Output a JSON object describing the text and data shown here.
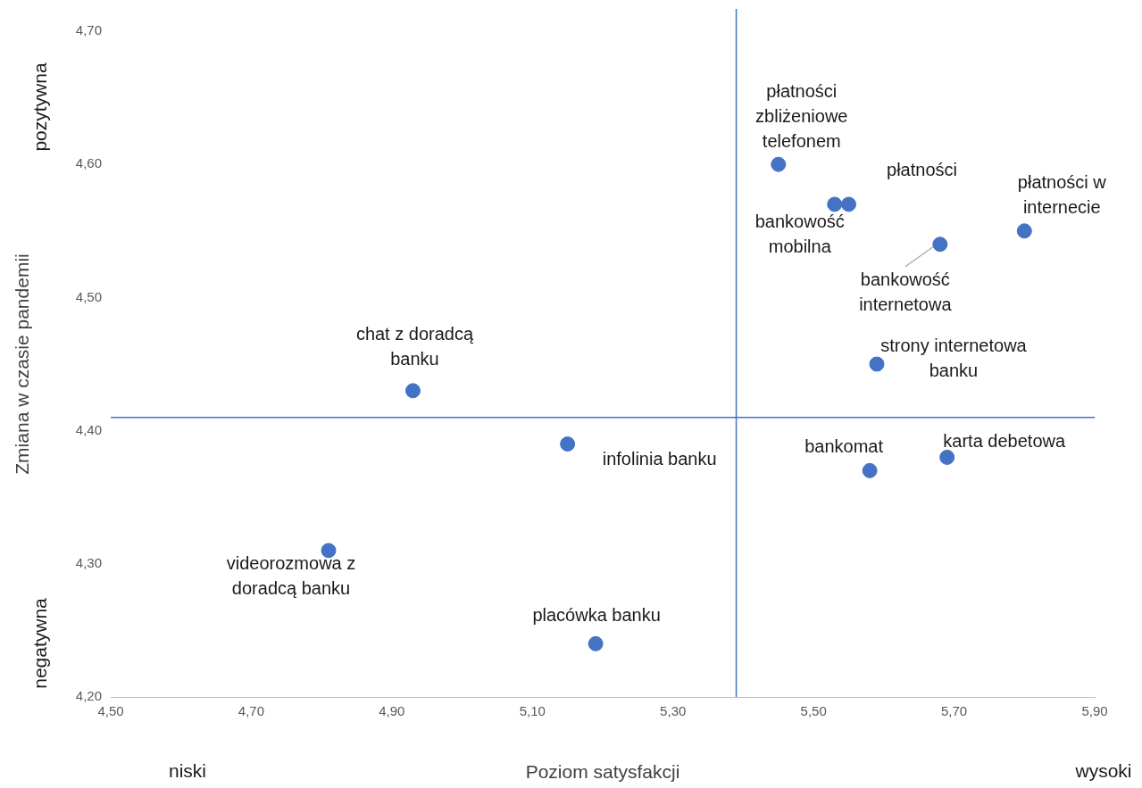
{
  "chart_data": {
    "type": "scatter",
    "xlabel": "Poziom satysfakcji",
    "ylabel": "Zmiana w czasie pandemii",
    "x": [
      5.45,
      5.55,
      5.53,
      5.8,
      5.68,
      5.59,
      4.93,
      5.15,
      5.58,
      5.69,
      4.81,
      5.19
    ],
    "values": [
      4.6,
      4.57,
      4.57,
      4.55,
      4.54,
      4.45,
      4.43,
      4.39,
      4.37,
      4.38,
      4.31,
      4.24
    ],
    "color": "#4472c4",
    "marker": "circle",
    "legend": false,
    "grid": false,
    "xlim": [
      4.5,
      5.9
    ],
    "ylim": [
      4.2,
      4.7
    ],
    "xticks": [
      {
        "value": 4.5,
        "label": "4,50"
      },
      {
        "value": 4.7,
        "label": "4,70"
      },
      {
        "value": 4.9,
        "label": "4,90"
      },
      {
        "value": 5.1,
        "label": "5,10"
      },
      {
        "value": 5.3,
        "label": "5,30"
      },
      {
        "value": 5.5,
        "label": "5,50"
      },
      {
        "value": 5.7,
        "label": "5,70"
      },
      {
        "value": 5.9,
        "label": "5,90"
      }
    ],
    "yticks": [
      {
        "value": 4.2,
        "label": "4,20"
      },
      {
        "value": 4.3,
        "label": "4,30"
      },
      {
        "value": 4.4,
        "label": "4,40"
      },
      {
        "value": 4.5,
        "label": "4,50"
      },
      {
        "value": 4.6,
        "label": "4,60"
      },
      {
        "value": 4.7,
        "label": "4,70"
      }
    ],
    "ref_lines": [
      {
        "axis": "x",
        "value": 5.39,
        "color": "#4472c4"
      },
      {
        "axis": "y",
        "value": 4.41,
        "color": "#4472c4"
      }
    ],
    "annotations": [
      "pozytywna",
      "negatywna",
      "niski",
      "wysoki",
      {
        "text": "płatności zbliżeniowe telefonem",
        "x": 5.45,
        "y": 4.6
      },
      {
        "text": "płatności",
        "x": 5.55,
        "y": 4.57
      },
      {
        "text": "bankowość mobilna",
        "x": 5.53,
        "y": 4.57
      },
      {
        "text": "płatności w internecie",
        "x": 5.8,
        "y": 4.55
      },
      {
        "text": "bankowość internetowa",
        "x": 5.68,
        "y": 4.54
      },
      {
        "text": "strony internetowa banku",
        "x": 5.59,
        "y": 4.45
      },
      {
        "text": "chat z doradcą banku",
        "x": 4.93,
        "y": 4.43
      },
      {
        "text": "infolinia banku",
        "x": 5.15,
        "y": 4.39
      },
      {
        "text": "bankomat",
        "x": 5.58,
        "y": 4.37
      },
      {
        "text": "karta debetowa",
        "x": 5.69,
        "y": 4.38
      },
      {
        "text": "videorozmowa z doradcą banku",
        "x": 4.81,
        "y": 4.31
      },
      {
        "text": "placówka banku",
        "x": 5.19,
        "y": 4.24
      }
    ]
  }
}
